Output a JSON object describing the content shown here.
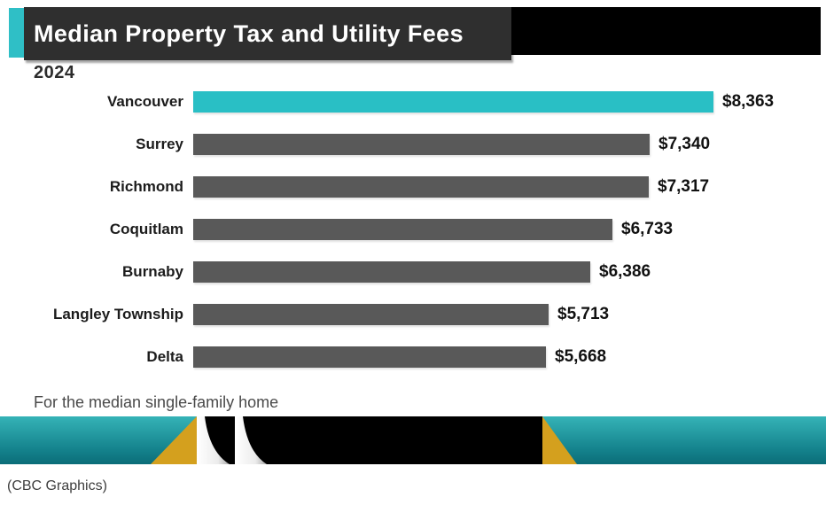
{
  "header": {
    "title": "Median Property Tax and Utility Fees",
    "year": "2024"
  },
  "chart_data": {
    "type": "bar",
    "orientation": "horizontal",
    "title": "Median Property Tax and Utility Fees",
    "subtitle_year": "2024",
    "categories": [
      "Vancouver",
      "Surrey",
      "Richmond",
      "Coquitlam",
      "Burnaby",
      "Langley Township",
      "Delta"
    ],
    "values": [
      8363,
      7340,
      7317,
      6733,
      6386,
      5713,
      5668
    ],
    "value_labels": [
      "$8,363",
      "$7,340",
      "$7,317",
      "$6,733",
      "$6,386",
      "$5,713",
      "$5,668"
    ],
    "xlim": [
      0,
      8363
    ],
    "grid": false,
    "legend": false,
    "highlight_category": "Vancouver",
    "highlight_color": "#29bfc5",
    "bar_color": "#595959",
    "note": "For the median single-family home"
  },
  "footer": {
    "note": "For the median single-family home",
    "caption": "(CBC Graphics)"
  },
  "colors": {
    "header_box": "#2f2f2f",
    "header_accent": "#2fbfc6",
    "top_black_band": "#000000",
    "highlight_bar": "#29bfc5",
    "default_bar": "#595959",
    "band_teal_top": "#2fb0b5",
    "band_teal_bottom": "#0b6d78",
    "band_gold": "#d4a01e",
    "band_black": "#000000"
  }
}
